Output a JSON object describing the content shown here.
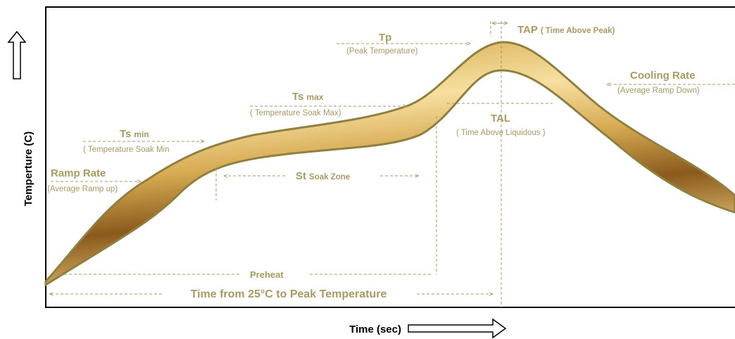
{
  "axes": {
    "y_label": "Temperture (C)",
    "x_label": "Time (sec)"
  },
  "labels": {
    "ramp_rate": {
      "title": "Ramp Rate",
      "subtitle": "(Average Ramp up)"
    },
    "ts_min": {
      "symbol": "Ts",
      "suffix": "min",
      "subtitle": "( Temperature Soak Min"
    },
    "ts_max": {
      "symbol": "Ts",
      "suffix": "max",
      "subtitle": "( Temperature Soak Max)"
    },
    "soak": {
      "symbol": "St",
      "subtitle": "Soak Zone"
    },
    "tp": {
      "symbol": "Tp",
      "subtitle": "(Peak Temperature)"
    },
    "tap": {
      "symbol": "TAP",
      "subtitle": "( Time Above Peak)"
    },
    "cooling_rate": {
      "title": "Cooling Rate",
      "subtitle": "(Average Ramp Down)"
    },
    "tal": {
      "symbol": "TAL",
      "subtitle": "( Time Above Liquidous )"
    },
    "preheat": "Preheat",
    "total": "Time from 25°C to Peak Temperature"
  }
}
